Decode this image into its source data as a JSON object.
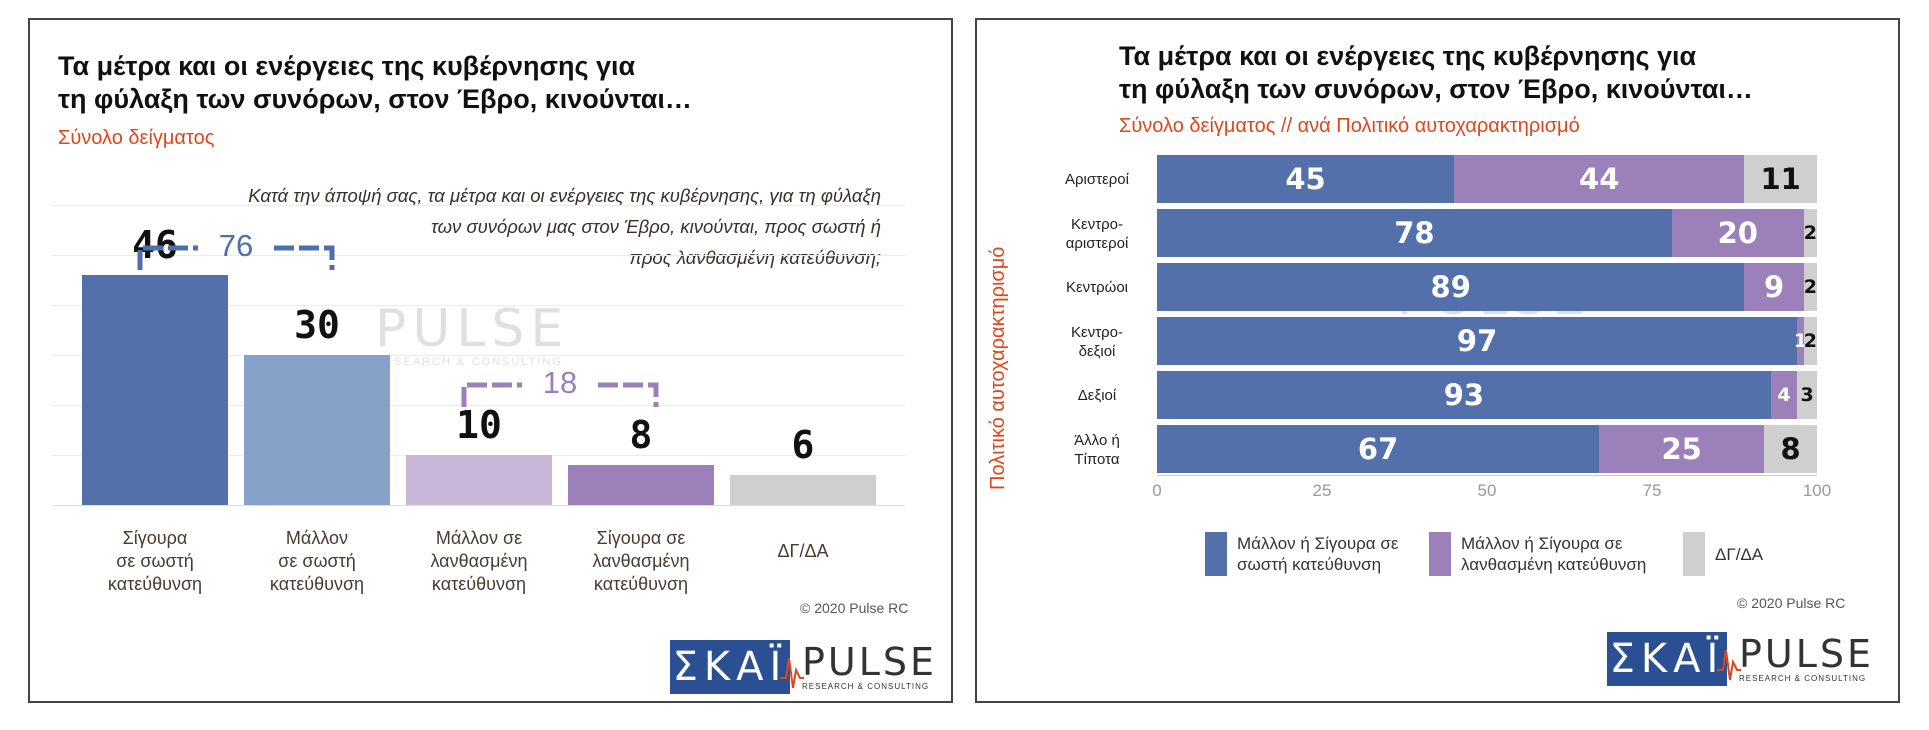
{
  "left": {
    "title_line1": "Τα μέτρα και οι ενέργειες της κυβέρνησης για",
    "title_line2": "τη φύλαξη των συνόρων, στον Έβρο, κινούνται…",
    "subtitle": "Σύνολο δείγματος",
    "question_line1": "Κατά την άποψή σας, τα μέτρα και οι ενέργειες της κυβέρνησης, για τη φύλαξη",
    "question_line2": "των συνόρων μας στον Έβρο, κινούνται, προς σωστή ή",
    "question_line3": "προς λανθασμένη κατεύθυνση;",
    "copyright": "© 2020 Pulse RC"
  },
  "right": {
    "title_line1": "Τα μέτρα και οι ενέργειες της κυβέρνησης για",
    "title_line2": "τη φύλαξη των συνόρων, στον Έβρο, κινούνται…",
    "subtitle": "Σύνολο δείγματος // ανά Πολιτικό αυτοχαρακτηρισμό",
    "copyright": "© 2020 Pulse RC"
  },
  "logos": {
    "skai": "ΣΚΑΪ",
    "pulse_word": "PULSE",
    "pulse_tagline": "RESEARCH & CONSULTING"
  },
  "colors": {
    "blue_dark": "#5470aa",
    "blue_light": "#86a2c8",
    "purple_light": "#c8b7d6",
    "purple": "#9b80b9",
    "gray": "#cfcfcf",
    "orange": "#e0461c"
  },
  "chart_data": [
    {
      "type": "bar",
      "categories": [
        [
          "Σίγουρα",
          "σε σωστή",
          "κατεύθυνση"
        ],
        [
          "Μάλλον",
          "σε σωστή",
          "κατεύθυνση"
        ],
        [
          "Μάλλον σε",
          "λανθασμένη",
          "κατεύθυνση"
        ],
        [
          "Σίγουρα σε",
          "λανθασμένη",
          "κατεύθυνση"
        ],
        [
          "ΔΓ/ΔΑ"
        ]
      ],
      "values": [
        46,
        30,
        10,
        8,
        6
      ],
      "bar_colors": [
        "#5470aa",
        "#86a2c8",
        "#c8b7d6",
        "#9b80b9",
        "#cfcfcf"
      ],
      "ylim": [
        0,
        60
      ],
      "grid": true,
      "brackets": [
        {
          "from": 0,
          "to": 1,
          "value": "76",
          "color": "#4f6faa"
        },
        {
          "from": 2,
          "to": 3,
          "value": "18",
          "color": "#9b80b9"
        }
      ]
    },
    {
      "type": "bar",
      "orientation": "horizontal",
      "stacked": true,
      "ylabel": "Πολιτικό αυτοχαρακτηρισμό",
      "categories": [
        [
          "Αριστεροί"
        ],
        [
          "Κεντρο-",
          "αριστεροί"
        ],
        [
          "Κεντρώοι"
        ],
        [
          "Κεντρο-",
          "δεξιοί"
        ],
        [
          "Δεξιοί"
        ],
        [
          "Άλλο ή",
          "Τίποτα"
        ]
      ],
      "series": [
        {
          "name": "Μάλλον ή Σίγουρα σε σωστή κατεύθυνση",
          "name_lines": [
            "Μάλλον ή Σίγουρα σε",
            "σωστή κατεύθυνση"
          ],
          "color": "#5470aa",
          "label_color": "#ffffff",
          "values": [
            45,
            78,
            89,
            97,
            93,
            67
          ]
        },
        {
          "name": "Μάλλον ή Σίγουρα σε λανθασμένη κατεύθυνση",
          "name_lines": [
            "Μάλλον ή Σίγουρα σε",
            "λανθασμένη κατεύθυνση"
          ],
          "color": "#9b80b9",
          "label_color": "#ffffff",
          "values": [
            44,
            20,
            9,
            1,
            4,
            25
          ]
        },
        {
          "name": "ΔΓ/ΔΑ",
          "name_lines": [
            "ΔΓ/ΔΑ"
          ],
          "color": "#cfcfcf",
          "label_color": "#111111",
          "values": [
            11,
            2,
            2,
            2,
            3,
            8
          ]
        }
      ],
      "xlim": [
        0,
        100
      ],
      "xticks": [
        0,
        25,
        50,
        75,
        100
      ],
      "legend_position": "bottom"
    }
  ]
}
